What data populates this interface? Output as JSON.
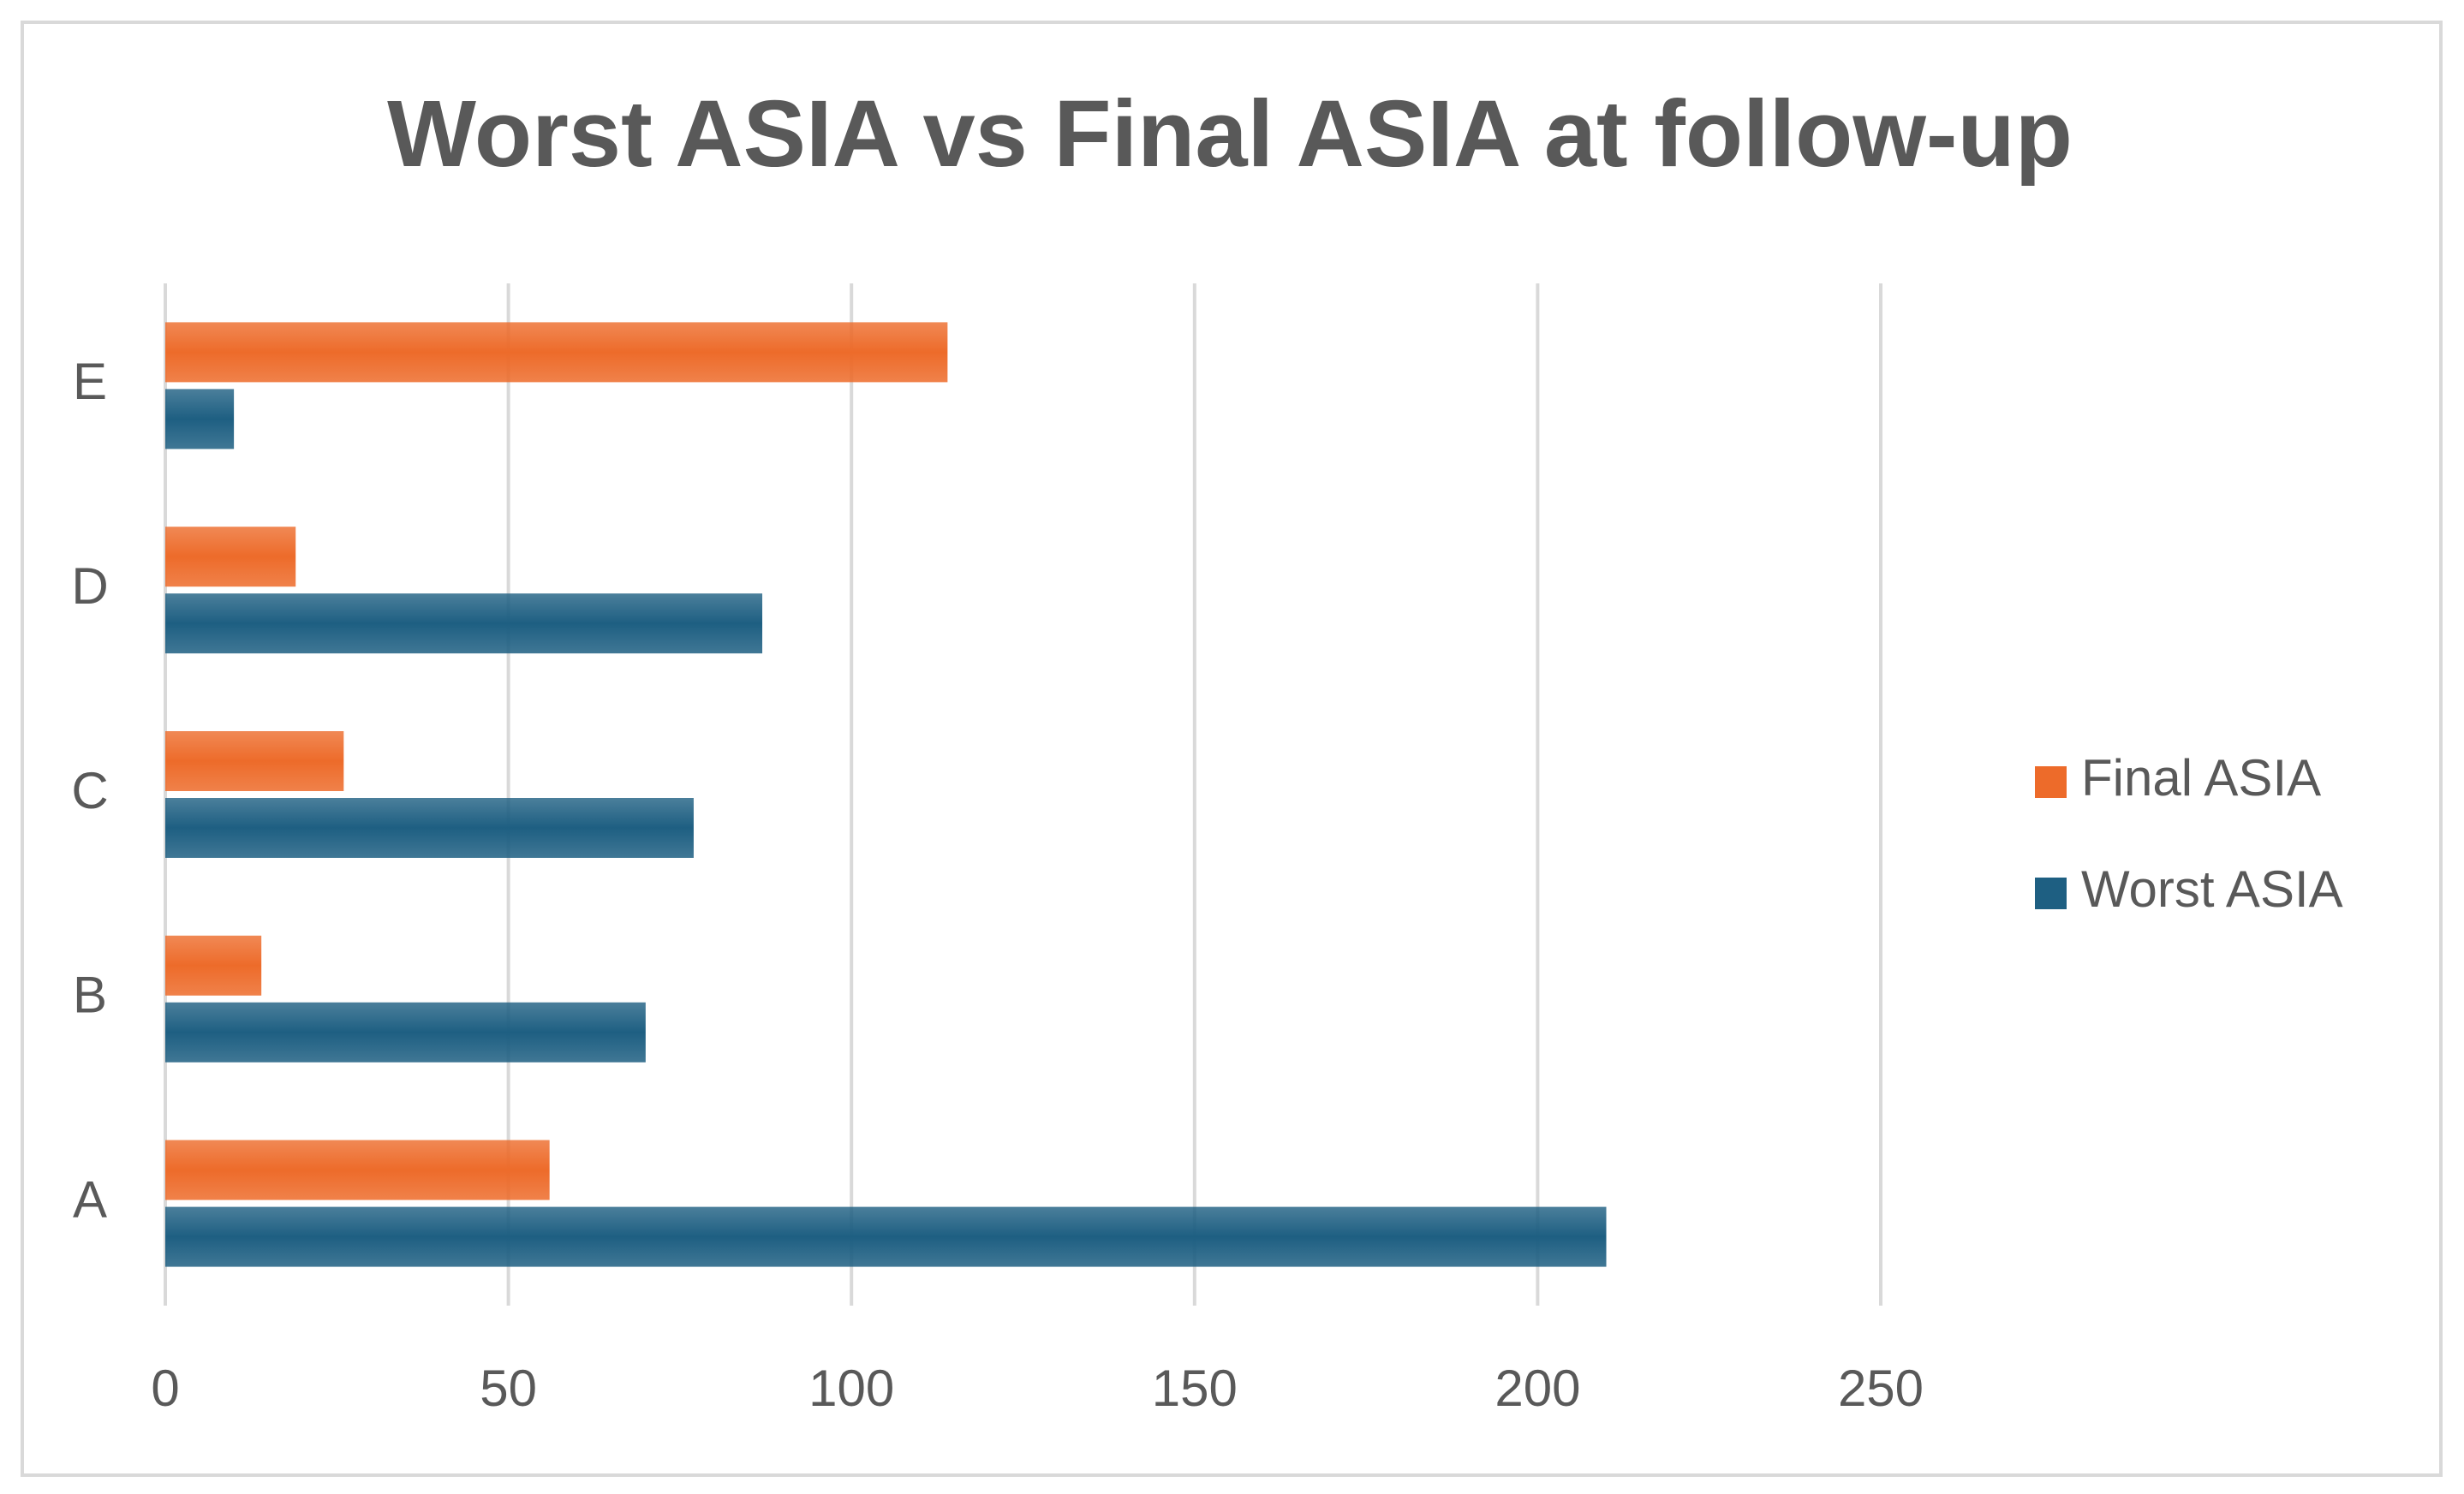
{
  "chart_data": {
    "type": "hbar",
    "title": "Worst ASIA  vs  Final ASIA at follow-up",
    "categories": [
      "A",
      "B",
      "C",
      "D",
      "E"
    ],
    "series": [
      {
        "name": "Final ASIA",
        "color": "#ed6b2a",
        "values": [
          56,
          14,
          26,
          19,
          114
        ]
      },
      {
        "name": "Worst ASIA",
        "color": "#1e5f82",
        "values": [
          210,
          70,
          77,
          87,
          10
        ]
      }
    ],
    "xlim": [
      0,
      250
    ],
    "xticks": [
      0,
      50,
      100,
      150,
      200,
      250
    ],
    "grid": true,
    "legend": "right"
  }
}
